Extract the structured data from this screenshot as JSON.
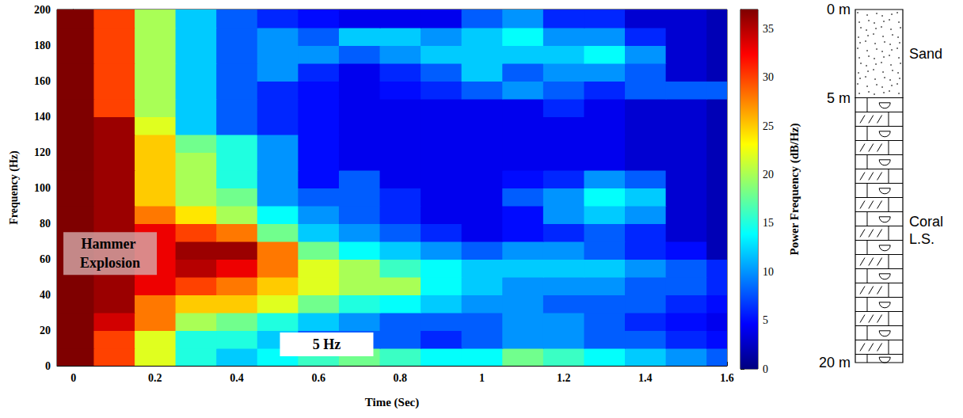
{
  "chart_data": {
    "type": "heatmap",
    "xlabel": "Time (Sec)",
    "ylabel": "Frequency (Hz)",
    "x": [
      0,
      0.1,
      0.2,
      0.3,
      0.4,
      0.5,
      0.6,
      0.7,
      0.8,
      0.9,
      1.0,
      1.1,
      1.2,
      1.3,
      1.4,
      1.5,
      1.6
    ],
    "y": [
      5,
      15,
      25,
      35,
      45,
      55,
      65,
      75,
      85,
      95,
      105,
      115,
      125,
      135,
      145,
      155,
      165,
      175,
      185,
      195
    ],
    "values": [
      [
        38,
        30,
        22,
        15,
        12,
        14,
        16,
        18,
        16,
        14,
        14,
        18,
        16,
        14,
        12,
        10,
        8
      ],
      [
        38,
        30,
        22,
        15,
        15,
        12,
        8,
        8,
        8,
        6,
        8,
        10,
        10,
        8,
        8,
        6,
        5
      ],
      [
        38,
        34,
        28,
        20,
        18,
        15,
        12,
        10,
        8,
        8,
        8,
        10,
        10,
        8,
        6,
        5,
        4
      ],
      [
        38,
        36,
        28,
        25,
        25,
        22,
        18,
        15,
        14,
        12,
        10,
        10,
        8,
        8,
        8,
        6,
        5
      ],
      [
        38,
        36,
        33,
        30,
        28,
        25,
        22,
        20,
        20,
        14,
        12,
        10,
        10,
        10,
        8,
        8,
        6
      ],
      [
        38,
        36,
        33,
        35,
        33,
        28,
        22,
        20,
        16,
        14,
        12,
        12,
        12,
        12,
        10,
        8,
        6
      ],
      [
        38,
        36,
        33,
        36,
        36,
        28,
        18,
        14,
        12,
        10,
        8,
        10,
        10,
        8,
        6,
        5,
        2
      ],
      [
        38,
        36,
        33,
        30,
        28,
        18,
        12,
        10,
        8,
        6,
        4,
        5,
        6,
        8,
        6,
        3,
        2
      ],
      [
        38,
        36,
        28,
        24,
        20,
        14,
        10,
        8,
        6,
        4,
        4,
        5,
        10,
        12,
        10,
        3,
        2
      ],
      [
        38,
        36,
        25,
        20,
        18,
        10,
        8,
        8,
        6,
        4,
        4,
        8,
        10,
        14,
        12,
        3,
        2
      ],
      [
        38,
        36,
        25,
        20,
        15,
        10,
        5,
        8,
        4,
        4,
        4,
        5,
        6,
        10,
        8,
        3,
        2
      ],
      [
        38,
        36,
        25,
        20,
        15,
        10,
        5,
        4,
        4,
        4,
        4,
        4,
        4,
        4,
        3,
        3,
        2
      ],
      [
        38,
        36,
        25,
        18,
        15,
        10,
        5,
        4,
        4,
        4,
        4,
        4,
        4,
        4,
        3,
        3,
        2
      ],
      [
        38,
        36,
        22,
        12,
        8,
        6,
        5,
        4,
        4,
        4,
        4,
        4,
        4,
        4,
        3,
        3,
        2
      ],
      [
        38,
        30,
        20,
        12,
        8,
        6,
        5,
        4,
        4,
        4,
        4,
        4,
        6,
        4,
        3,
        3,
        2
      ],
      [
        38,
        30,
        20,
        12,
        8,
        6,
        5,
        4,
        5,
        6,
        8,
        10,
        8,
        6,
        8,
        8,
        8
      ],
      [
        38,
        30,
        20,
        12,
        8,
        10,
        6,
        4,
        6,
        8,
        12,
        8,
        10,
        10,
        8,
        3,
        2
      ],
      [
        38,
        30,
        20,
        12,
        8,
        10,
        10,
        8,
        10,
        12,
        12,
        12,
        12,
        14,
        10,
        3,
        2
      ],
      [
        38,
        30,
        20,
        12,
        8,
        10,
        8,
        12,
        12,
        10,
        12,
        14,
        10,
        10,
        6,
        3,
        2
      ],
      [
        38,
        30,
        20,
        12,
        8,
        6,
        5,
        4,
        4,
        4,
        8,
        10,
        6,
        6,
        3,
        3,
        2
      ]
    ],
    "xlim": [
      -0.04,
      1.6
    ],
    "xticks": [
      0,
      0.2,
      0.4,
      0.6,
      0.8,
      1,
      1.2,
      1.4,
      1.6
    ],
    "ylim": [
      0,
      200
    ],
    "yticks": [
      0,
      20,
      40,
      60,
      80,
      100,
      120,
      140,
      160,
      180,
      200
    ],
    "grid": false,
    "colorbar_label": "Power Frequency (dB/Hz)",
    "color_range": [
      0,
      37
    ],
    "color_ticks": [
      0,
      5,
      10,
      15,
      20,
      25,
      30,
      35
    ],
    "annotations": [
      {
        "text": "Hammer Explosion",
        "x": 0.09,
        "y": 63
      },
      {
        "text": "5 Hz",
        "x": 0.62,
        "y": 12
      }
    ],
    "column": {
      "depth_range": [
        0,
        20
      ],
      "depth_ticks": [
        {
          "value": 0,
          "label": "0 m"
        },
        {
          "value": 5,
          "label": "5 m"
        },
        {
          "value": 20,
          "label": "20 m"
        }
      ],
      "layers": [
        {
          "name": "Sand",
          "top": 0,
          "bottom": 5
        },
        {
          "name": "Coral L.S.",
          "top": 5,
          "bottom": 20
        }
      ]
    }
  }
}
